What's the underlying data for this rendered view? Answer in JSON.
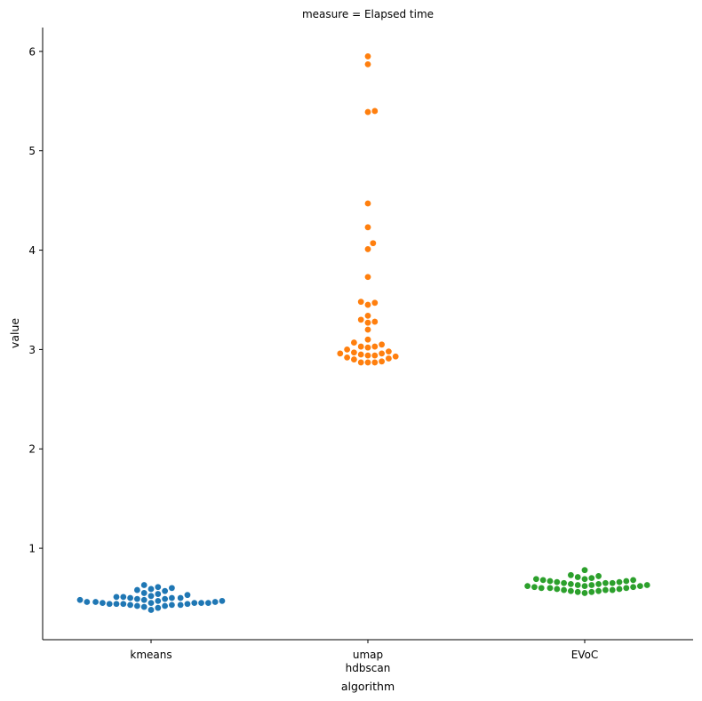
{
  "chart_data": {
    "type": "scatter",
    "title": "measure = Elapsed time",
    "xlabel": "algorithm",
    "ylabel": "value",
    "categories": [
      "kmeans",
      "umap\nhdbscan",
      "EVoC"
    ],
    "ylim": [
      0.08,
      6.24
    ],
    "yticks": [
      1,
      2,
      3,
      4,
      5,
      6
    ],
    "grid": false,
    "legend": "none",
    "series": [
      {
        "category": "kmeans",
        "color": "#1f77b4",
        "values": [
          0.38,
          0.4,
          0.41,
          0.42,
          0.42,
          0.43,
          0.43,
          0.43,
          0.44,
          0.44,
          0.44,
          0.44,
          0.45,
          0.45,
          0.45,
          0.45,
          0.45,
          0.46,
          0.46,
          0.46,
          0.47,
          0.47,
          0.48,
          0.48,
          0.49,
          0.49,
          0.5,
          0.5,
          0.5,
          0.51,
          0.51,
          0.52,
          0.53,
          0.54,
          0.55,
          0.57,
          0.58,
          0.59,
          0.6,
          0.61,
          0.63
        ]
      },
      {
        "category": "umap\nhdbscan",
        "color": "#ff7f0e",
        "values": [
          2.87,
          2.87,
          2.87,
          2.88,
          2.9,
          2.91,
          2.92,
          2.93,
          2.94,
          2.94,
          2.95,
          2.96,
          2.96,
          2.97,
          2.98,
          3.0,
          3.02,
          3.03,
          3.03,
          3.05,
          3.07,
          3.1,
          3.2,
          3.27,
          3.28,
          3.3,
          3.34,
          3.45,
          3.47,
          3.48,
          3.73,
          4.01,
          4.07,
          4.23,
          4.47,
          5.39,
          5.4,
          5.87,
          5.95
        ]
      },
      {
        "category": "EVoC",
        "color": "#2ca02c",
        "values": [
          0.55,
          0.56,
          0.56,
          0.57,
          0.57,
          0.58,
          0.58,
          0.58,
          0.59,
          0.59,
          0.6,
          0.6,
          0.6,
          0.61,
          0.61,
          0.62,
          0.62,
          0.62,
          0.63,
          0.63,
          0.63,
          0.64,
          0.64,
          0.65,
          0.65,
          0.65,
          0.66,
          0.66,
          0.67,
          0.67,
          0.68,
          0.68,
          0.69,
          0.69,
          0.7,
          0.71,
          0.72,
          0.73,
          0.78
        ]
      }
    ]
  }
}
